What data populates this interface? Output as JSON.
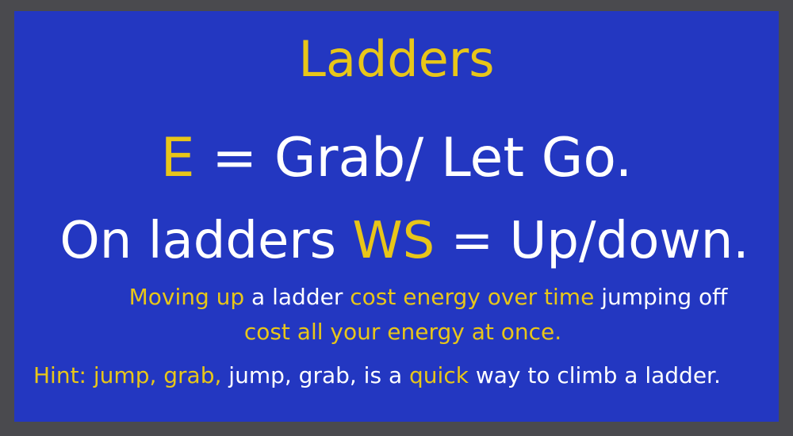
{
  "colors": {
    "frame": "#4a4a4e",
    "panel": "#2337c1",
    "highlight": "#e8c619",
    "text": "#ffffff"
  },
  "title": "Ladders",
  "line1": {
    "key": "E",
    "rest": " = Grab/ Let Go."
  },
  "line2": {
    "pre": "On ladders ",
    "key": "WS",
    "rest": " = Up/down."
  },
  "line3": {
    "part1": "Moving up",
    "part2": " a ladder ",
    "part3": "cost energy over time",
    "part4": " jumping off"
  },
  "line4": {
    "part1": "cost all your energy at once."
  },
  "line5": {
    "part1": "Hint: jump, grab,",
    "part2": " jump, grab, is a ",
    "part3": " quick",
    "part4": " way to climb a ladder."
  }
}
